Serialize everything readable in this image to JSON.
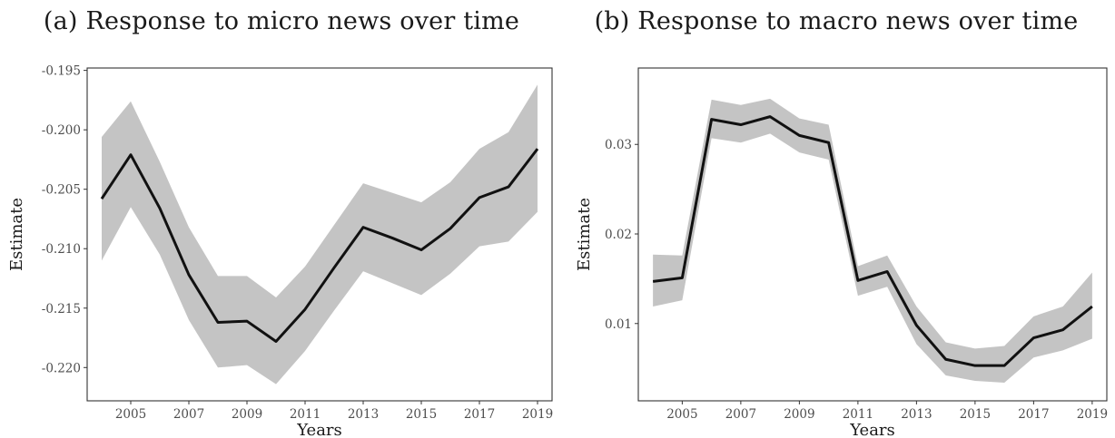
{
  "chart_data": [
    {
      "type": "line",
      "title": "(a) Response to micro news over time",
      "xlabel": "Years",
      "ylabel": "Estimate",
      "xlim": [
        2003.5,
        2019.5
      ],
      "ylim": [
        -0.2228,
        -0.1948
      ],
      "x_ticks": [
        2005,
        2007,
        2009,
        2011,
        2013,
        2015,
        2017,
        2019
      ],
      "y_ticks": [
        -0.195,
        -0.2,
        -0.205,
        -0.21,
        -0.215,
        -0.22
      ],
      "y_tick_labels": [
        "-0.195",
        "-0.200",
        "-0.205",
        "-0.210",
        "-0.215",
        "-0.220"
      ],
      "grid": false,
      "x": [
        2004,
        2005,
        2006,
        2007,
        2008,
        2009,
        2010,
        2011,
        2012,
        2013,
        2014,
        2015,
        2016,
        2017,
        2018,
        2019
      ],
      "series": [
        {
          "values": [
            -0.2058,
            -0.2021,
            -0.2066,
            -0.2122,
            -0.2162,
            -0.2161,
            -0.2178,
            -0.2151,
            -0.2116,
            -0.2082,
            -0.2091,
            -0.2101,
            -0.2083,
            -0.2057,
            -0.2048,
            -0.2016
          ]
        }
      ],
      "band": {
        "lower": [
          -0.211,
          -0.2065,
          -0.2105,
          -0.216,
          -0.22,
          -0.2198,
          -0.2214,
          -0.2186,
          -0.2152,
          -0.2119,
          -0.2129,
          -0.2139,
          -0.2121,
          -0.2098,
          -0.2094,
          -0.2069
        ],
        "upper": [
          -0.2006,
          -0.1976,
          -0.2027,
          -0.2082,
          -0.2123,
          -0.2123,
          -0.2141,
          -0.2115,
          -0.208,
          -0.2045,
          -0.2053,
          -0.2061,
          -0.2044,
          -0.2016,
          -0.2002,
          -0.1962
        ]
      },
      "colors": {
        "line": "#111111",
        "band": "#c4c4c4"
      }
    },
    {
      "type": "line",
      "title": "(b) Response to macro news over time",
      "xlabel": "Years",
      "ylabel": "Estimate",
      "xlim": [
        2003.5,
        2019.5
      ],
      "ylim": [
        0.00137,
        0.03853
      ],
      "x_ticks": [
        2005,
        2007,
        2009,
        2011,
        2013,
        2015,
        2017,
        2019
      ],
      "y_ticks": [
        0.01,
        0.02,
        0.03
      ],
      "y_tick_labels": [
        "0.01",
        "0.02",
        "0.03"
      ],
      "grid": false,
      "x": [
        2004,
        2005,
        2006,
        2007,
        2008,
        2009,
        2010,
        2011,
        2012,
        2013,
        2014,
        2015,
        2016,
        2017,
        2018,
        2019
      ],
      "series": [
        {
          "values": [
            0.0147,
            0.0151,
            0.0328,
            0.0322,
            0.0331,
            0.031,
            0.0302,
            0.0148,
            0.0158,
            0.0098,
            0.006,
            0.0053,
            0.0053,
            0.0084,
            0.0093,
            0.0119
          ]
        }
      ],
      "band": {
        "lower": [
          0.0119,
          0.0126,
          0.0307,
          0.0302,
          0.0312,
          0.0291,
          0.0283,
          0.0131,
          0.0141,
          0.0077,
          0.0042,
          0.0036,
          0.0034,
          0.0062,
          0.007,
          0.0083
        ],
        "upper": [
          0.0177,
          0.0176,
          0.035,
          0.0344,
          0.0351,
          0.0329,
          0.0322,
          0.0164,
          0.0176,
          0.0119,
          0.0079,
          0.0072,
          0.0075,
          0.0108,
          0.0119,
          0.0157
        ]
      },
      "colors": {
        "line": "#111111",
        "band": "#c4c4c4"
      }
    }
  ]
}
